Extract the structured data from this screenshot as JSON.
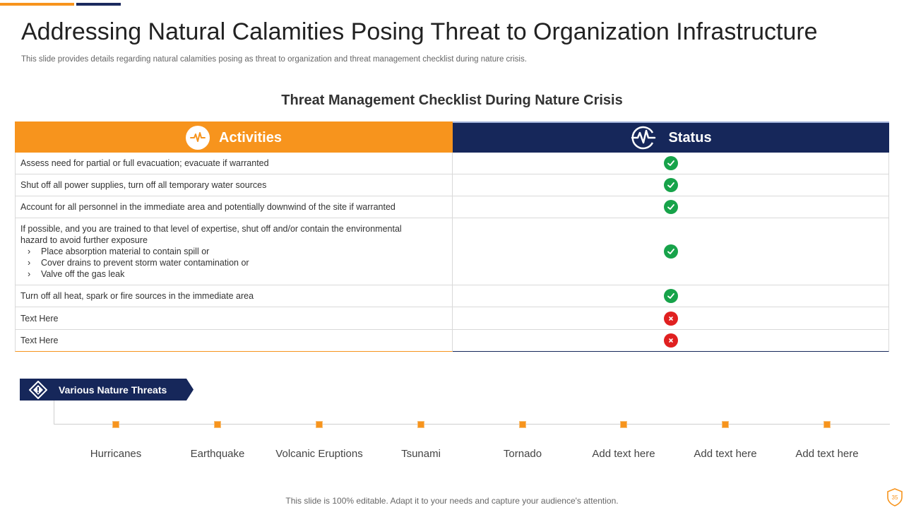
{
  "slide": {
    "title": "Addressing Natural Calamities Posing Threat to Organization Infrastructure",
    "subtitle": "This slide provides details regarding natural calamities posing as threat to organization and threat management checklist during nature crisis.",
    "footer": "This slide is 100% editable. Adapt it to your needs and capture your audience's attention.",
    "page_number": "35"
  },
  "checklist": {
    "section_title": "Threat Management Checklist During Nature Crisis",
    "header": {
      "activities": "Activities",
      "status": "Status",
      "activities_icon": "pulse-icon",
      "status_icon": "heartbeat-circle-icon"
    },
    "rows": [
      {
        "text": "Assess need for partial or full evacuation; evacuate if warranted",
        "status": "done"
      },
      {
        "text": "Shut off all power supplies, turn off all temporary water sources",
        "status": "done"
      },
      {
        "text": "Account for all personnel in the immediate area and potentially downwind of the site if warranted",
        "status": "done"
      },
      {
        "text": "If possible, and you are trained to that level of expertise, shut off and/or contain the environmental",
        "text2": "hazard to avoid further exposure",
        "sub": [
          "Place absorption material to contain spill or",
          "Cover drains to prevent storm water contamination or",
          "Valve off the gas leak"
        ],
        "status": "done"
      },
      {
        "text": "Turn off all heat, spark or fire sources in the immediate area",
        "status": "done"
      },
      {
        "text": "Text Here",
        "status": "not-done"
      },
      {
        "text": "Text Here",
        "status": "not-done"
      }
    ],
    "bullet_glyph": "›"
  },
  "threats": {
    "banner_label": "Various Nature Threats",
    "banner_icon": "warning-diamond-icon",
    "items": [
      "Hurricanes",
      "Earthquake",
      "Volcanic Eruptions",
      "Tsunami",
      "Tornado",
      "Add text here",
      "Add text here",
      "Add text here"
    ]
  },
  "colors": {
    "accent_orange": "#f7941d",
    "navy": "#16275a",
    "check_green": "#17a34a",
    "cross_red": "#e02020"
  }
}
